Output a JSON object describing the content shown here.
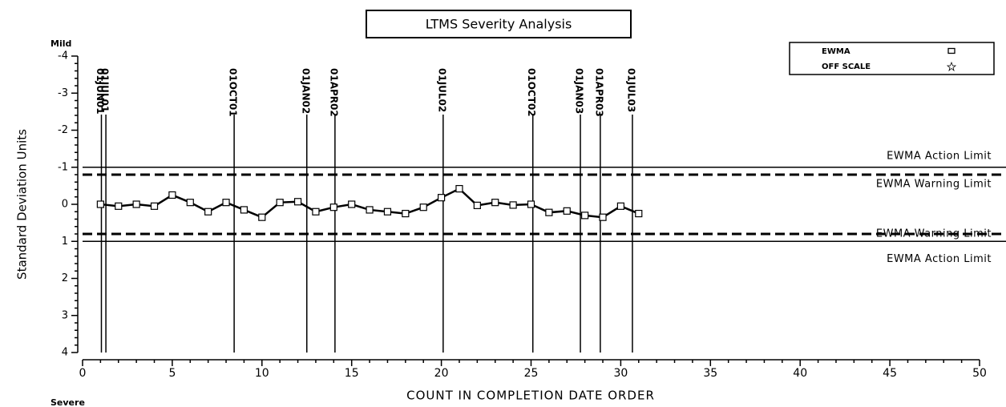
{
  "chart_data": {
    "type": "line",
    "title": "LTMS Severity Analysis",
    "y_label": "Standard Deviation Units",
    "x_label": "COUNT IN COMPLETION DATE ORDER",
    "y_top_label": "Mild",
    "y_bottom_label": "Severe",
    "x": [
      1,
      2,
      3,
      4,
      5,
      6,
      7,
      8,
      9,
      10,
      11,
      12,
      13,
      14,
      15,
      16,
      17,
      18,
      19,
      20,
      21,
      22,
      23,
      24,
      25,
      26,
      27,
      28,
      29,
      30,
      31
    ],
    "series": [
      {
        "name": "EWMA",
        "color": "#000000",
        "values": [
          0.0,
          0.05,
          0.0,
          0.05,
          -0.25,
          -0.05,
          0.2,
          -0.05,
          0.15,
          0.35,
          -0.05,
          -0.07,
          0.2,
          0.08,
          0.0,
          0.15,
          0.2,
          0.25,
          0.08,
          -0.18,
          -0.42,
          0.03,
          -0.05,
          0.02,
          0.0,
          0.22,
          0.18,
          0.3,
          0.35,
          0.05,
          0.25
        ]
      }
    ],
    "legend": [
      {
        "name": "EWMA",
        "marker": "square"
      },
      {
        "name": "OFF SCALE",
        "marker": "star"
      }
    ],
    "legend_position": "top-right",
    "xlim": [
      0,
      50
    ],
    "xticks": [
      0,
      5,
      10,
      15,
      20,
      25,
      30,
      35,
      40,
      45,
      50
    ],
    "ylim": [
      4,
      -4
    ],
    "yticks": [
      -4,
      -3,
      -2,
      -1,
      0,
      1,
      2,
      3,
      4
    ],
    "reference_lines": [
      {
        "value": -1,
        "label": "EWMA Action Limit",
        "style": "solid"
      },
      {
        "value": -0.8,
        "label": "EWMA Warning Limit",
        "style": "dashed"
      },
      {
        "value": 0.8,
        "label": "EWMA Warning Limit",
        "style": "dashed"
      },
      {
        "value": 1,
        "label": "EWMA Action Limit",
        "style": "solid"
      }
    ],
    "date_markers": [
      {
        "x": 1.05,
        "label": "01JUN01"
      },
      {
        "x": 1.3,
        "label": "01JUL01"
      },
      {
        "x": 8.45,
        "label": "01OCT01"
      },
      {
        "x": 12.5,
        "label": "01JAN02"
      },
      {
        "x": 14.07,
        "label": "01APR02"
      },
      {
        "x": 20.1,
        "label": "01JUL02"
      },
      {
        "x": 25.1,
        "label": "01OCT02"
      },
      {
        "x": 27.75,
        "label": "01JAN03"
      },
      {
        "x": 28.86,
        "label": "01APR03"
      },
      {
        "x": 30.65,
        "label": "01JUL03"
      }
    ]
  }
}
